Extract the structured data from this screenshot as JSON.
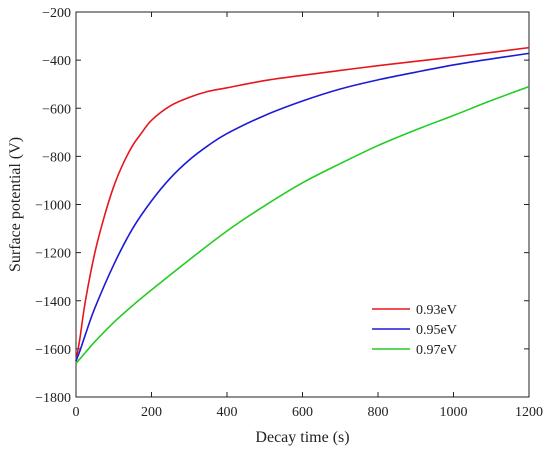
{
  "chart_data": {
    "type": "line",
    "title": "",
    "xlabel": "Decay time (s)",
    "ylabel": "Surface potential (V)",
    "xlim": [
      0,
      1200
    ],
    "ylim": [
      -1800,
      -200
    ],
    "xticks": [
      0,
      200,
      400,
      600,
      800,
      1000,
      1200
    ],
    "yticks": [
      -1800,
      -1600,
      -1400,
      -1200,
      -1000,
      -800,
      -600,
      -400,
      -200
    ],
    "xtick_labels": [
      "0",
      "200",
      "400",
      "600",
      "800",
      "1000",
      "1200"
    ],
    "ytick_labels": [
      "-1800",
      "-1600",
      "-1400",
      "-1200",
      "-1000",
      "-800",
      "-600",
      "-400",
      "-200"
    ],
    "grid": false,
    "legend_position": "bottom-right",
    "series": [
      {
        "name": "0.93eV",
        "color": "#e8161c",
        "x": [
          0,
          10,
          25,
          50,
          75,
          100,
          125,
          150,
          175,
          200,
          250,
          300,
          350,
          400,
          500,
          600,
          700,
          800,
          900,
          1000,
          1100,
          1200
        ],
        "y": [
          -1650,
          -1560,
          -1400,
          -1200,
          -1050,
          -925,
          -830,
          -755,
          -700,
          -650,
          -590,
          -555,
          -530,
          -515,
          -485,
          -463,
          -443,
          -423,
          -405,
          -387,
          -368,
          -348
        ]
      },
      {
        "name": "0.95eV",
        "color": "#1b1bd6",
        "x": [
          0,
          10,
          25,
          50,
          100,
          150,
          200,
          250,
          300,
          350,
          400,
          500,
          600,
          700,
          800,
          900,
          1000,
          1100,
          1200
        ],
        "y": [
          -1650,
          -1610,
          -1540,
          -1430,
          -1250,
          -1100,
          -985,
          -890,
          -815,
          -755,
          -705,
          -630,
          -570,
          -520,
          -482,
          -450,
          -420,
          -395,
          -372
        ]
      },
      {
        "name": "0.97eV",
        "color": "#22cc22",
        "x": [
          0,
          25,
          50,
          100,
          150,
          200,
          300,
          400,
          500,
          600,
          700,
          800,
          900,
          1000,
          1100,
          1200
        ],
        "y": [
          -1660,
          -1615,
          -1570,
          -1490,
          -1420,
          -1355,
          -1230,
          -1110,
          -1005,
          -910,
          -830,
          -755,
          -690,
          -630,
          -568,
          -510
        ]
      }
    ]
  }
}
